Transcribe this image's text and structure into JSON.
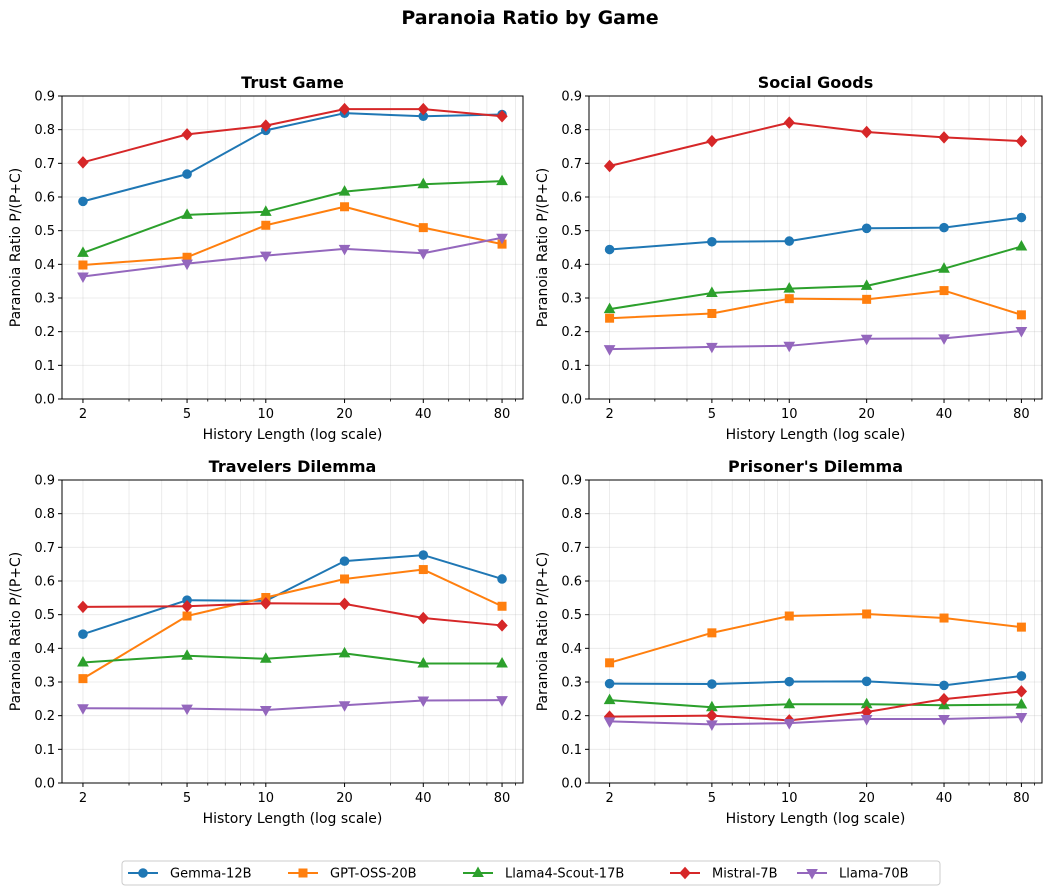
{
  "figure": {
    "title": "Paranoia Ratio by Game"
  },
  "legend": {
    "placement": "bottom-center",
    "entries": [
      "Gemma-12B",
      "GPT-OSS-20B",
      "Llama4-Scout-17B",
      "Mistral-7B",
      "Llama-70B"
    ]
  },
  "series_style": [
    {
      "name": "Gemma-12B",
      "color": "#1f77b4",
      "marker": "circle"
    },
    {
      "name": "GPT-OSS-20B",
      "color": "#ff7f0e",
      "marker": "square"
    },
    {
      "name": "Llama4-Scout-17B",
      "color": "#2ca02c",
      "marker": "triangle-up"
    },
    {
      "name": "Mistral-7B",
      "color": "#d62728",
      "marker": "diamond"
    },
    {
      "name": "Llama-70B",
      "color": "#9467bd",
      "marker": "triangle-down"
    }
  ],
  "chart_data": [
    {
      "type": "line",
      "title": "Trust Game",
      "xlabel": "History Length (log scale)",
      "ylabel": "Paranoia Ratio P/(P+C)",
      "xscale": "log",
      "x": [
        2,
        5,
        10,
        20,
        40,
        80
      ],
      "xticks": [
        "2",
        "5",
        "10",
        "20",
        "40",
        "80"
      ],
      "ylim": [
        0,
        0.9
      ],
      "yticks": [
        "0.0",
        "0.1",
        "0.2",
        "0.3",
        "0.4",
        "0.5",
        "0.6",
        "0.7",
        "0.8",
        "0.9"
      ],
      "grid": true,
      "series": [
        {
          "name": "Gemma-12B",
          "values": [
            0.587,
            0.668,
            0.798,
            0.849,
            0.84,
            0.845
          ]
        },
        {
          "name": "GPT-OSS-20B",
          "values": [
            0.398,
            0.421,
            0.516,
            0.571,
            0.509,
            0.46
          ]
        },
        {
          "name": "Llama4-Scout-17B",
          "values": [
            0.434,
            0.547,
            0.556,
            0.616,
            0.638,
            0.647
          ]
        },
        {
          "name": "Mistral-7B",
          "values": [
            0.703,
            0.786,
            0.812,
            0.861,
            0.861,
            0.84
          ]
        },
        {
          "name": "Llama-70B",
          "values": [
            0.364,
            0.402,
            0.426,
            0.446,
            0.433,
            0.479
          ]
        }
      ]
    },
    {
      "type": "line",
      "title": "Social Goods",
      "xlabel": "History Length (log scale)",
      "ylabel": "Paranoia Ratio P/(P+C)",
      "xscale": "log",
      "x": [
        2,
        5,
        10,
        20,
        40,
        80
      ],
      "xticks": [
        "2",
        "5",
        "10",
        "20",
        "40",
        "80"
      ],
      "ylim": [
        0,
        0.9
      ],
      "yticks": [
        "0.0",
        "0.1",
        "0.2",
        "0.3",
        "0.4",
        "0.5",
        "0.6",
        "0.7",
        "0.8",
        "0.9"
      ],
      "grid": true,
      "series": [
        {
          "name": "Gemma-12B",
          "values": [
            0.444,
            0.467,
            0.469,
            0.507,
            0.509,
            0.539
          ]
        },
        {
          "name": "GPT-OSS-20B",
          "values": [
            0.24,
            0.254,
            0.298,
            0.296,
            0.322,
            0.25
          ]
        },
        {
          "name": "Llama4-Scout-17B",
          "values": [
            0.267,
            0.315,
            0.328,
            0.336,
            0.387,
            0.453
          ]
        },
        {
          "name": "Mistral-7B",
          "values": [
            0.692,
            0.766,
            0.821,
            0.793,
            0.777,
            0.766
          ]
        },
        {
          "name": "Llama-70B",
          "values": [
            0.148,
            0.155,
            0.158,
            0.179,
            0.18,
            0.202
          ]
        }
      ]
    },
    {
      "type": "line",
      "title": "Travelers Dilemma",
      "xlabel": "History Length (log scale)",
      "ylabel": "Paranoia Ratio P/(P+C)",
      "xscale": "log",
      "x": [
        2,
        5,
        10,
        20,
        40,
        80
      ],
      "xticks": [
        "2",
        "5",
        "10",
        "20",
        "40",
        "80"
      ],
      "ylim": [
        0,
        0.9
      ],
      "yticks": [
        "0.0",
        "0.1",
        "0.2",
        "0.3",
        "0.4",
        "0.5",
        "0.6",
        "0.7",
        "0.8",
        "0.9"
      ],
      "grid": true,
      "series": [
        {
          "name": "Gemma-12B",
          "values": [
            0.442,
            0.543,
            0.541,
            0.659,
            0.677,
            0.606
          ]
        },
        {
          "name": "GPT-OSS-20B",
          "values": [
            0.31,
            0.496,
            0.551,
            0.606,
            0.634,
            0.525
          ]
        },
        {
          "name": "Llama4-Scout-17B",
          "values": [
            0.358,
            0.378,
            0.369,
            0.385,
            0.355,
            0.355
          ]
        },
        {
          "name": "Mistral-7B",
          "values": [
            0.523,
            0.525,
            0.534,
            0.532,
            0.49,
            0.468
          ]
        },
        {
          "name": "Llama-70B",
          "values": [
            0.222,
            0.221,
            0.217,
            0.231,
            0.245,
            0.246
          ]
        }
      ]
    },
    {
      "type": "line",
      "title": "Prisoner's Dilemma",
      "xlabel": "History Length (log scale)",
      "ylabel": "Paranoia Ratio P/(P+C)",
      "xscale": "log",
      "x": [
        2,
        5,
        10,
        20,
        40,
        80
      ],
      "xticks": [
        "2",
        "5",
        "10",
        "20",
        "40",
        "80"
      ],
      "ylim": [
        0,
        0.9
      ],
      "yticks": [
        "0.0",
        "0.1",
        "0.2",
        "0.3",
        "0.4",
        "0.5",
        "0.6",
        "0.7",
        "0.8",
        "0.9"
      ],
      "grid": true,
      "series": [
        {
          "name": "Gemma-12B",
          "values": [
            0.295,
            0.294,
            0.301,
            0.302,
            0.29,
            0.318
          ]
        },
        {
          "name": "GPT-OSS-20B",
          "values": [
            0.357,
            0.446,
            0.496,
            0.502,
            0.49,
            0.463
          ]
        },
        {
          "name": "Llama4-Scout-17B",
          "values": [
            0.246,
            0.225,
            0.234,
            0.234,
            0.231,
            0.233
          ]
        },
        {
          "name": "Mistral-7B",
          "values": [
            0.197,
            0.2,
            0.186,
            0.211,
            0.249,
            0.272
          ]
        },
        {
          "name": "Llama-70B",
          "values": [
            0.183,
            0.174,
            0.178,
            0.19,
            0.19,
            0.196
          ]
        }
      ]
    }
  ]
}
